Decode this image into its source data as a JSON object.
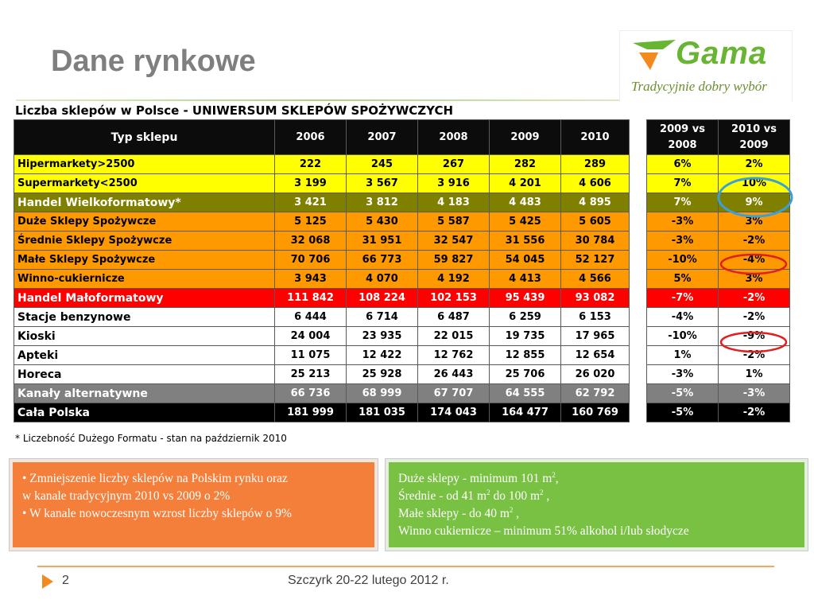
{
  "slide": {
    "title": "Dane rynkowe",
    "page_number": "2",
    "footer_text": "Szczyrk 20-22 lutego 2012 r."
  },
  "logo": {
    "name": "Gama",
    "tagline": "Tradycyjnie dobry wybór"
  },
  "table": {
    "caption": "Liczba sklepów w Polsce - UNIWERSUM SKLEPÓW SPOŻYWCZYCH",
    "header": [
      "Typ sklepu",
      "2006",
      "2007",
      "2008",
      "2009",
      "2010"
    ],
    "change_header": [
      "2009 vs 2008",
      "2010 vs 2009"
    ],
    "rows": [
      {
        "label": "Hipermarkety>2500",
        "style": "yellow",
        "values": [
          "222",
          "245",
          "267",
          "282",
          "289"
        ],
        "changes": [
          "6%",
          "2%"
        ]
      },
      {
        "label": "Supermarkety<2500",
        "style": "yellow",
        "values": [
          "3 199",
          "3 567",
          "3 916",
          "4 201",
          "4 606"
        ],
        "changes": [
          "7%",
          "10%"
        ]
      },
      {
        "label": "Handel Wielkoformatowy*",
        "style": "olive",
        "values": [
          "3 421",
          "3 812",
          "4 183",
          "4 483",
          "4 895"
        ],
        "changes": [
          "7%",
          "9%"
        ]
      },
      {
        "label": "Duże Sklepy Spożywcze",
        "style": "orange",
        "values": [
          "5 125",
          "5 430",
          "5 587",
          "5 425",
          "5 605"
        ],
        "changes": [
          "-3%",
          "3%"
        ]
      },
      {
        "label": "Średnie Sklepy Spożywcze",
        "style": "orange",
        "values": [
          "32 068",
          "31 951",
          "32 547",
          "31 556",
          "30 784"
        ],
        "changes": [
          "-3%",
          "-2%"
        ]
      },
      {
        "label": "Małe Sklepy Spożywcze",
        "style": "orange",
        "values": [
          "70 706",
          "66 773",
          "59 827",
          "54 045",
          "52 127"
        ],
        "changes": [
          "-10%",
          "-4%"
        ]
      },
      {
        "label": "Winno-cukiernicze",
        "style": "orange",
        "values": [
          "3 943",
          "4 070",
          "4 192",
          "4 413",
          "4 566"
        ],
        "changes": [
          "5%",
          "3%"
        ]
      },
      {
        "label": "Handel Małoformatowy",
        "style": "red",
        "values": [
          "111 842",
          "108 224",
          "102 153",
          "95 439",
          "93 082"
        ],
        "changes": [
          "-7%",
          "-2%"
        ]
      },
      {
        "label": "Stacje benzynowe",
        "style": "white",
        "values": [
          "6 444",
          "6 714",
          "6 487",
          "6 259",
          "6 153"
        ],
        "changes": [
          "-4%",
          "-2%"
        ]
      },
      {
        "label": "Kioski",
        "style": "white",
        "values": [
          "24 004",
          "23 935",
          "22 015",
          "19 735",
          "17 965"
        ],
        "changes": [
          "-10%",
          "-9%"
        ]
      },
      {
        "label": "Apteki",
        "style": "white",
        "values": [
          "11 075",
          "12 422",
          "12 762",
          "12 855",
          "12 654"
        ],
        "changes": [
          "1%",
          "-2%"
        ]
      },
      {
        "label": "Horeca",
        "style": "white",
        "values": [
          "25 213",
          "25 928",
          "26 443",
          "25 706",
          "26 020"
        ],
        "changes": [
          "-3%",
          "1%"
        ]
      },
      {
        "label": "Kanały alternatywne",
        "style": "gray",
        "values": [
          "66 736",
          "68 999",
          "67 707",
          "64 555",
          "62 792"
        ],
        "changes": [
          "-5%",
          "-3%"
        ]
      },
      {
        "label": "Cała Polska",
        "style": "black",
        "values": [
          "181 999",
          "181 035",
          "174 043",
          "164 477",
          "160 769"
        ],
        "changes": [
          "-5%",
          "-2%"
        ]
      }
    ],
    "footnote": "* Liczebność Dużego Formatu - stan na październik 2010",
    "colors": {
      "yellow": "#ffff00",
      "olive": "#808000",
      "orange": "#ff9900",
      "red": "#ff0000",
      "white": "#ffffff",
      "gray": "#808080",
      "black": "#000000",
      "circle_blue": "#3aa0d8",
      "circle_red": "#e02020"
    }
  },
  "callouts": {
    "left": [
      "• Zmniejszenie liczby sklepów na Polskim rynku oraz",
      "w kanale tradycyjnym  2010 vs 2009 o 2%",
      "• W kanale nowoczesnym wzrost liczby sklepów o 9%"
    ],
    "right": [
      {
        "text": "Duże sklepy - minimum 101 m",
        "sup": "2",
        "tail": ","
      },
      {
        "text": "Średnie - od 41 m",
        "sup": "2",
        "tail": " do 100 m",
        "sup2": "2",
        "tail2": " ,"
      },
      {
        "text": "Małe sklepy - do 40  m",
        "sup": "2",
        "tail": " ,"
      },
      {
        "text": "Winno cukiernicze – minimum 51% alkohol i/lub słodycze",
        "sup": "",
        "tail": ""
      }
    ],
    "colors": {
      "left": "#f47f3b",
      "right": "#79c143"
    }
  },
  "icons": {
    "logo": "gama-logo-check-icon",
    "footer": "orange-triangle-arrow-icon"
  }
}
